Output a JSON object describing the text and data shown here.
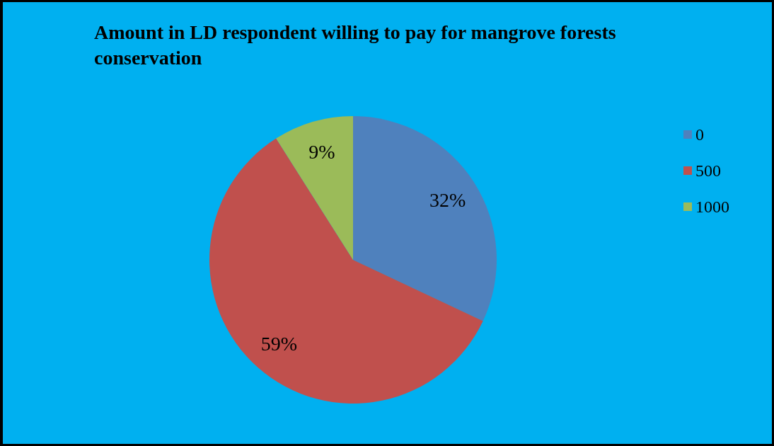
{
  "chart_data": {
    "type": "pie",
    "title": "Amount in LD respondent willing to pay for mangrove forests conservation",
    "categories": [
      "0",
      "500",
      "1000"
    ],
    "values": [
      32,
      59,
      9
    ],
    "colors": [
      "#4f81bd",
      "#c0504d",
      "#9bbb59"
    ],
    "value_labels": [
      "32%",
      "59%",
      "9%"
    ],
    "legend": "right"
  }
}
